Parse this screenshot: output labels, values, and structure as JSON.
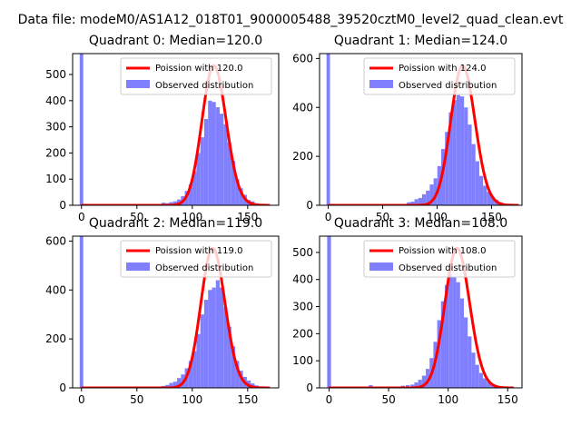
{
  "figure": {
    "title": "Data file: modeM0/AS1A12_018T01_9000005488_39520cztM0_level2_quad_clean.evt"
  },
  "colors": {
    "poisson": "#ff0000",
    "observed": "#8080ff",
    "observed_edge": "#7070f0"
  },
  "chart_data": [
    {
      "type": "bar",
      "title": "Quadrant 0: Median=120.0",
      "median": 120.0,
      "series": [
        {
          "name": "Poission with 120.0",
          "kind": "line"
        },
        {
          "name": "Observed distribution",
          "kind": "histogram"
        }
      ],
      "xlim": [
        -8,
        178
      ],
      "ylim": [
        0,
        580
      ],
      "xticks": [
        0,
        50,
        100,
        150
      ],
      "yticks": [
        0,
        100,
        200,
        300,
        400,
        500
      ],
      "bin_width": 3.5,
      "spike": {
        "x": 0,
        "value": 580
      },
      "bins": [
        {
          "x": 70,
          "value": 3
        },
        {
          "x": 74,
          "value": 10
        },
        {
          "x": 77.5,
          "value": 8
        },
        {
          "x": 81,
          "value": 12
        },
        {
          "x": 84.5,
          "value": 15
        },
        {
          "x": 88,
          "value": 22
        },
        {
          "x": 91.5,
          "value": 35
        },
        {
          "x": 95,
          "value": 55
        },
        {
          "x": 98.5,
          "value": 80
        },
        {
          "x": 102,
          "value": 130
        },
        {
          "x": 105.5,
          "value": 200
        },
        {
          "x": 109,
          "value": 260
        },
        {
          "x": 112.5,
          "value": 330
        },
        {
          "x": 116,
          "value": 400
        },
        {
          "x": 119.5,
          "value": 395
        },
        {
          "x": 123,
          "value": 375
        },
        {
          "x": 126.5,
          "value": 350
        },
        {
          "x": 130,
          "value": 310
        },
        {
          "x": 133.5,
          "value": 240
        },
        {
          "x": 137,
          "value": 170
        },
        {
          "x": 140.5,
          "value": 100
        },
        {
          "x": 144,
          "value": 65
        },
        {
          "x": 147.5,
          "value": 40
        },
        {
          "x": 151,
          "value": 20
        },
        {
          "x": 154.5,
          "value": 15
        },
        {
          "x": 158,
          "value": 8
        },
        {
          "x": 161.5,
          "value": 4
        },
        {
          "x": 165,
          "value": 2
        }
      ],
      "poisson_range": [
        0,
        170
      ]
    },
    {
      "type": "bar",
      "title": "Quadrant 1: Median=124.0",
      "median": 124.0,
      "series": [
        {
          "name": "Poission with 124.0",
          "kind": "line"
        },
        {
          "name": "Observed distribution",
          "kind": "histogram"
        }
      ],
      "xlim": [
        -8,
        178
      ],
      "ylim": [
        0,
        620
      ],
      "xticks": [
        0,
        50,
        100,
        150
      ],
      "yticks": [
        0,
        200,
        400,
        600
      ],
      "bin_width": 3.5,
      "spike": {
        "x": 0,
        "value": 620
      },
      "bins": [
        {
          "x": 70,
          "value": 5
        },
        {
          "x": 74,
          "value": 12
        },
        {
          "x": 77.5,
          "value": 15
        },
        {
          "x": 81,
          "value": 25
        },
        {
          "x": 84.5,
          "value": 30
        },
        {
          "x": 88,
          "value": 45
        },
        {
          "x": 91.5,
          "value": 60
        },
        {
          "x": 95,
          "value": 85
        },
        {
          "x": 98.5,
          "value": 110
        },
        {
          "x": 102,
          "value": 160
        },
        {
          "x": 105.5,
          "value": 230
        },
        {
          "x": 109,
          "value": 300
        },
        {
          "x": 112.5,
          "value": 380
        },
        {
          "x": 116,
          "value": 430
        },
        {
          "x": 119.5,
          "value": 450
        },
        {
          "x": 123,
          "value": 445
        },
        {
          "x": 126.5,
          "value": 400
        },
        {
          "x": 130,
          "value": 330
        },
        {
          "x": 133.5,
          "value": 250
        },
        {
          "x": 137,
          "value": 180
        },
        {
          "x": 140.5,
          "value": 120
        },
        {
          "x": 144,
          "value": 80
        },
        {
          "x": 147.5,
          "value": 55
        },
        {
          "x": 151,
          "value": 35
        },
        {
          "x": 154.5,
          "value": 22
        },
        {
          "x": 158,
          "value": 12
        },
        {
          "x": 161.5,
          "value": 6
        },
        {
          "x": 165,
          "value": 3
        }
      ],
      "poisson_range": [
        0,
        175
      ]
    },
    {
      "type": "bar",
      "title": "Quadrant 2: Median=119.0",
      "median": 119.0,
      "series": [
        {
          "name": "Poission with 119.0",
          "kind": "line"
        },
        {
          "name": "Observed distribution",
          "kind": "histogram"
        }
      ],
      "xlim": [
        -8,
        178
      ],
      "ylim": [
        0,
        620
      ],
      "xticks": [
        0,
        50,
        100,
        150
      ],
      "yticks": [
        0,
        200,
        400,
        600
      ],
      "bin_width": 3.5,
      "spike": {
        "x": 0,
        "value": 620
      },
      "bins": [
        {
          "x": 70,
          "value": 3
        },
        {
          "x": 74,
          "value": 8
        },
        {
          "x": 77.5,
          "value": 12
        },
        {
          "x": 81,
          "value": 20
        },
        {
          "x": 84.5,
          "value": 25
        },
        {
          "x": 88,
          "value": 40
        },
        {
          "x": 91.5,
          "value": 55
        },
        {
          "x": 95,
          "value": 80
        },
        {
          "x": 98.5,
          "value": 110
        },
        {
          "x": 102,
          "value": 150
        },
        {
          "x": 105.5,
          "value": 220
        },
        {
          "x": 109,
          "value": 300
        },
        {
          "x": 112.5,
          "value": 360
        },
        {
          "x": 116,
          "value": 400
        },
        {
          "x": 119.5,
          "value": 410
        },
        {
          "x": 123,
          "value": 440
        },
        {
          "x": 126.5,
          "value": 410
        },
        {
          "x": 130,
          "value": 330
        },
        {
          "x": 133.5,
          "value": 250
        },
        {
          "x": 137,
          "value": 170
        },
        {
          "x": 140.5,
          "value": 110
        },
        {
          "x": 144,
          "value": 70
        },
        {
          "x": 147.5,
          "value": 45
        },
        {
          "x": 151,
          "value": 30
        },
        {
          "x": 154.5,
          "value": 18
        },
        {
          "x": 158,
          "value": 10
        },
        {
          "x": 161.5,
          "value": 5
        },
        {
          "x": 165,
          "value": 2
        }
      ],
      "poisson_range": [
        0,
        170
      ]
    },
    {
      "type": "bar",
      "title": "Quadrant 3: Median=108.0",
      "median": 108.0,
      "series": [
        {
          "name": "Poission with 108.0",
          "kind": "line"
        },
        {
          "name": "Observed distribution",
          "kind": "histogram"
        }
      ],
      "xlim": [
        -8,
        162
      ],
      "ylim": [
        0,
        560
      ],
      "xticks": [
        0,
        50,
        100,
        150
      ],
      "yticks": [
        0,
        100,
        200,
        300,
        400,
        500
      ],
      "bin_width": 3.2,
      "spike": {
        "x": 0,
        "value": 560
      },
      "bins": [
        {
          "x": 35,
          "value": 10
        },
        {
          "x": 48,
          "value": 5
        },
        {
          "x": 56,
          "value": 5
        },
        {
          "x": 62,
          "value": 8
        },
        {
          "x": 66,
          "value": 10
        },
        {
          "x": 70,
          "value": 12
        },
        {
          "x": 73.2,
          "value": 20
        },
        {
          "x": 76.4,
          "value": 30
        },
        {
          "x": 79.6,
          "value": 45
        },
        {
          "x": 82.8,
          "value": 70
        },
        {
          "x": 86,
          "value": 110
        },
        {
          "x": 89.2,
          "value": 170
        },
        {
          "x": 92.4,
          "value": 250
        },
        {
          "x": 95.6,
          "value": 320
        },
        {
          "x": 98.8,
          "value": 380
        },
        {
          "x": 102,
          "value": 420
        },
        {
          "x": 105.2,
          "value": 410
        },
        {
          "x": 108.4,
          "value": 390
        },
        {
          "x": 111.6,
          "value": 330
        },
        {
          "x": 114.8,
          "value": 260
        },
        {
          "x": 118,
          "value": 190
        },
        {
          "x": 121.2,
          "value": 130
        },
        {
          "x": 124.4,
          "value": 85
        },
        {
          "x": 127.6,
          "value": 55
        },
        {
          "x": 130.8,
          "value": 35
        },
        {
          "x": 134,
          "value": 22
        },
        {
          "x": 137.2,
          "value": 14
        },
        {
          "x": 140.4,
          "value": 8
        },
        {
          "x": 143.6,
          "value": 4
        }
      ],
      "poisson_range": [
        0,
        155
      ]
    }
  ]
}
